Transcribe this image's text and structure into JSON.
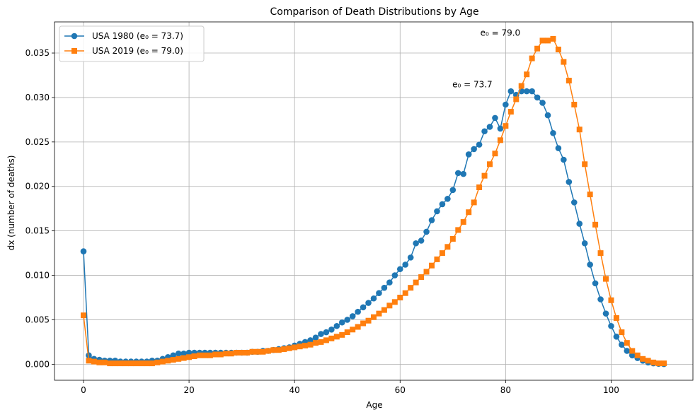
{
  "chart_data": {
    "type": "line",
    "title": "Comparison of Death Distributions by Age",
    "xlabel": "Age",
    "ylabel": "dx (number of deaths)",
    "xlim": [
      -5.5,
      115.5
    ],
    "ylim": [
      -0.0018,
      0.0385
    ],
    "xticks": [
      0,
      20,
      40,
      60,
      80,
      100
    ],
    "yticks": [
      0.0,
      0.005,
      0.01,
      0.015,
      0.02,
      0.025,
      0.03,
      0.035
    ],
    "ytick_labels": [
      "0.000",
      "0.005",
      "0.010",
      "0.015",
      "0.020",
      "0.025",
      "0.030",
      "0.035"
    ],
    "grid": true,
    "legend_position": "top-left",
    "series": [
      {
        "name": "USA 1980 (e₀ = 73.7)",
        "color": "#1f77b4",
        "marker": "circle",
        "x": [
          0,
          1,
          2,
          3,
          4,
          5,
          6,
          7,
          8,
          9,
          10,
          11,
          12,
          13,
          14,
          15,
          16,
          17,
          18,
          19,
          20,
          21,
          22,
          23,
          24,
          25,
          26,
          27,
          28,
          29,
          30,
          31,
          32,
          33,
          34,
          35,
          36,
          37,
          38,
          39,
          40,
          41,
          42,
          43,
          44,
          45,
          46,
          47,
          48,
          49,
          50,
          51,
          52,
          53,
          54,
          55,
          56,
          57,
          58,
          59,
          60,
          61,
          62,
          63,
          64,
          65,
          66,
          67,
          68,
          69,
          70,
          71,
          72,
          73,
          74,
          75,
          76,
          77,
          78,
          79,
          80,
          81,
          82,
          83,
          84,
          85,
          86,
          87,
          88,
          89,
          90,
          91,
          92,
          93,
          94,
          95,
          96,
          97,
          98,
          99,
          100,
          101,
          102,
          103,
          104,
          105,
          106,
          107,
          108,
          109,
          110
        ],
        "y": [
          0.0127,
          0.001,
          0.0006,
          0.0005,
          0.0004,
          0.0004,
          0.0004,
          0.0003,
          0.0003,
          0.0003,
          0.0003,
          0.0003,
          0.0003,
          0.0004,
          0.0004,
          0.0006,
          0.0008,
          0.001,
          0.0012,
          0.0012,
          0.0013,
          0.0013,
          0.0013,
          0.0013,
          0.0013,
          0.0013,
          0.0013,
          0.0013,
          0.0013,
          0.0013,
          0.0013,
          0.0013,
          0.0014,
          0.0014,
          0.0015,
          0.0015,
          0.0016,
          0.0017,
          0.0018,
          0.0019,
          0.0021,
          0.0023,
          0.0025,
          0.0027,
          0.003,
          0.0034,
          0.0036,
          0.0039,
          0.0043,
          0.0047,
          0.005,
          0.0054,
          0.0059,
          0.0064,
          0.0069,
          0.0074,
          0.008,
          0.0086,
          0.0092,
          0.01,
          0.0107,
          0.0112,
          0.012,
          0.0136,
          0.0139,
          0.0149,
          0.0162,
          0.0172,
          0.018,
          0.0186,
          0.0196,
          0.0215,
          0.0214,
          0.0236,
          0.0242,
          0.0247,
          0.0262,
          0.0267,
          0.0277,
          0.0265,
          0.0292,
          0.0307,
          0.0303,
          0.0307,
          0.0307,
          0.0307,
          0.03,
          0.0294,
          0.028,
          0.026,
          0.0243,
          0.023,
          0.0205,
          0.0182,
          0.0158,
          0.0136,
          0.0112,
          0.0091,
          0.0073,
          0.0057,
          0.0043,
          0.0031,
          0.0022,
          0.0015,
          0.001,
          0.0007,
          0.0004,
          0.0002,
          0.0001,
          5e-05,
          2e-05
        ]
      },
      {
        "name": "USA 2019 (e₀ = 79.0)",
        "color": "#ff7f0e",
        "marker": "square",
        "x": [
          0,
          1,
          2,
          3,
          4,
          5,
          6,
          7,
          8,
          9,
          10,
          11,
          12,
          13,
          14,
          15,
          16,
          17,
          18,
          19,
          20,
          21,
          22,
          23,
          24,
          25,
          26,
          27,
          28,
          29,
          30,
          31,
          32,
          33,
          34,
          35,
          36,
          37,
          38,
          39,
          40,
          41,
          42,
          43,
          44,
          45,
          46,
          47,
          48,
          49,
          50,
          51,
          52,
          53,
          54,
          55,
          56,
          57,
          58,
          59,
          60,
          61,
          62,
          63,
          64,
          65,
          66,
          67,
          68,
          69,
          70,
          71,
          72,
          73,
          74,
          75,
          76,
          77,
          78,
          79,
          80,
          81,
          82,
          83,
          84,
          85,
          86,
          87,
          88,
          89,
          90,
          91,
          92,
          93,
          94,
          95,
          96,
          97,
          98,
          99,
          100,
          101,
          102,
          103,
          104,
          105,
          106,
          107,
          108,
          109,
          110
        ],
        "y": [
          0.0055,
          0.0004,
          0.0003,
          0.0002,
          0.0002,
          0.0001,
          0.0001,
          0.0001,
          0.0001,
          0.0001,
          0.0001,
          0.0001,
          0.0001,
          0.0001,
          0.0002,
          0.0003,
          0.0004,
          0.0005,
          0.0006,
          0.0007,
          0.0008,
          0.0009,
          0.001,
          0.001,
          0.001,
          0.0011,
          0.0011,
          0.0012,
          0.0012,
          0.0013,
          0.0013,
          0.0013,
          0.0014,
          0.0014,
          0.0014,
          0.0015,
          0.0016,
          0.0016,
          0.0017,
          0.0018,
          0.0019,
          0.002,
          0.0021,
          0.0022,
          0.0024,
          0.0025,
          0.0027,
          0.0029,
          0.0031,
          0.0033,
          0.0036,
          0.0039,
          0.0042,
          0.0046,
          0.0049,
          0.0053,
          0.0057,
          0.0061,
          0.0066,
          0.007,
          0.0075,
          0.008,
          0.0086,
          0.0092,
          0.0098,
          0.0104,
          0.0111,
          0.0118,
          0.0125,
          0.0132,
          0.0141,
          0.0151,
          0.016,
          0.0171,
          0.0182,
          0.0199,
          0.0212,
          0.0225,
          0.0237,
          0.0252,
          0.0268,
          0.0284,
          0.0298,
          0.0313,
          0.0326,
          0.0344,
          0.0355,
          0.0364,
          0.0364,
          0.0366,
          0.0354,
          0.034,
          0.0319,
          0.0292,
          0.0264,
          0.0225,
          0.0191,
          0.0157,
          0.0125,
          0.0096,
          0.0072,
          0.0052,
          0.0036,
          0.0024,
          0.0015,
          0.001,
          0.0006,
          0.0004,
          0.0002,
          0.0001,
          0.0001
        ]
      }
    ],
    "annotations": [
      {
        "text": "e₀ = 73.7",
        "x": 73.7,
        "y": 0.0309
      },
      {
        "text": "e₀ = 79.0",
        "x": 79.0,
        "y": 0.0367
      }
    ]
  }
}
